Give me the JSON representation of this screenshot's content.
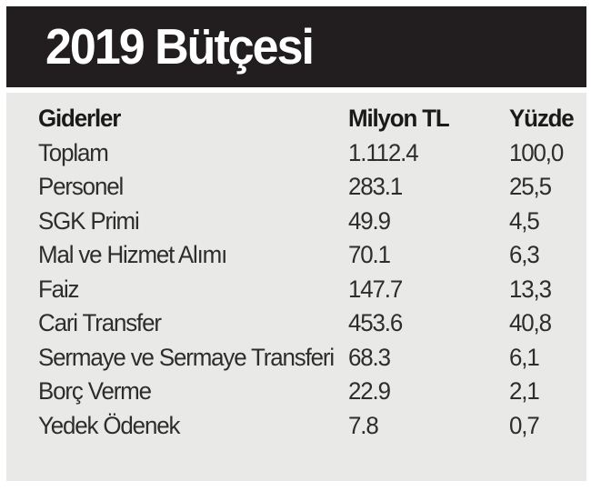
{
  "title": "2019 Bütçesi",
  "colors": {
    "banner_background": "#221e1f",
    "panel_background": "#e9e9e7",
    "title_text": "#ffffff",
    "body_text": "#2d2d2d"
  },
  "chart_data": {
    "type": "table",
    "title": "2019 Bütçesi",
    "columns": [
      "Giderler",
      "Milyon TL",
      "Yüzde"
    ],
    "rows": [
      [
        "Toplam",
        "1.112.4",
        "100,0"
      ],
      [
        "Personel",
        "283.1",
        "25,5"
      ],
      [
        "SGK Primi",
        "49.9",
        "4,5"
      ],
      [
        "Mal ve Hizmet Alımı",
        "70.1",
        "6,3"
      ],
      [
        "Faiz",
        "147.7",
        "13,3"
      ],
      [
        "Cari Transfer",
        "453.6",
        "40,8"
      ],
      [
        "Sermaye ve Sermaye Transferi",
        "68.3",
        "6,1"
      ],
      [
        "Borç Verme",
        "22.9",
        "2,1"
      ],
      [
        "Yedek Ödenek",
        "7.8",
        "0,7"
      ]
    ]
  }
}
